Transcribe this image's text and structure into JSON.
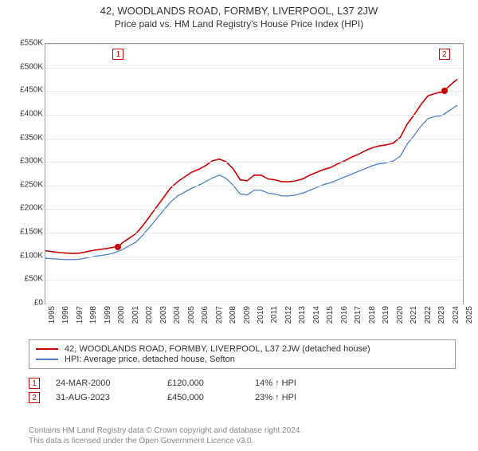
{
  "title": "42, WOODLANDS ROAD, FORMBY, LIVERPOOL, L37 2JW",
  "subtitle": "Price paid vs. HM Land Registry's House Price Index (HPI)",
  "chart": {
    "type": "line",
    "background_color": "#ffffff",
    "grid_color": "#e6e6e6",
    "axis_color": "#999999",
    "tick_font_size": 10,
    "x": {
      "min": 1995,
      "max": 2025,
      "ticks": [
        1995,
        1996,
        1997,
        1998,
        1999,
        2000,
        2001,
        2002,
        2003,
        2004,
        2005,
        2006,
        2007,
        2008,
        2009,
        2010,
        2011,
        2012,
        2013,
        2014,
        2015,
        2016,
        2017,
        2018,
        2019,
        2020,
        2021,
        2022,
        2023,
        2024,
        2025
      ]
    },
    "y": {
      "min": 0,
      "max": 550000,
      "ticks": [
        0,
        50000,
        100000,
        150000,
        200000,
        250000,
        300000,
        350000,
        400000,
        450000,
        500000,
        550000
      ],
      "prefix": "£",
      "suffix": "K",
      "divisor": 1000
    },
    "series": [
      {
        "id": "subject",
        "label": "42, WOODLANDS ROAD, FORMBY, LIVERPOOL, L37 2JW (detached house)",
        "color": "#cc0000",
        "line_width": 1.6,
        "points": [
          [
            1995.0,
            112000
          ],
          [
            1995.5,
            110000
          ],
          [
            1996.0,
            108000
          ],
          [
            1996.5,
            107000
          ],
          [
            1997.0,
            106000
          ],
          [
            1997.5,
            107000
          ],
          [
            1998.0,
            110000
          ],
          [
            1998.5,
            113000
          ],
          [
            1999.0,
            115000
          ],
          [
            1999.5,
            117000
          ],
          [
            2000.0,
            120000
          ],
          [
            2000.25,
            120000
          ],
          [
            2000.5,
            128000
          ],
          [
            2001.0,
            138000
          ],
          [
            2001.5,
            148000
          ],
          [
            2002.0,
            165000
          ],
          [
            2002.5,
            185000
          ],
          [
            2003.0,
            205000
          ],
          [
            2003.5,
            225000
          ],
          [
            2004.0,
            245000
          ],
          [
            2004.5,
            258000
          ],
          [
            2005.0,
            268000
          ],
          [
            2005.5,
            278000
          ],
          [
            2006.0,
            284000
          ],
          [
            2006.5,
            292000
          ],
          [
            2007.0,
            302000
          ],
          [
            2007.5,
            306000
          ],
          [
            2008.0,
            300000
          ],
          [
            2008.5,
            285000
          ],
          [
            2009.0,
            262000
          ],
          [
            2009.5,
            260000
          ],
          [
            2010.0,
            272000
          ],
          [
            2010.5,
            272000
          ],
          [
            2011.0,
            264000
          ],
          [
            2011.5,
            262000
          ],
          [
            2012.0,
            258000
          ],
          [
            2012.5,
            258000
          ],
          [
            2013.0,
            260000
          ],
          [
            2013.5,
            264000
          ],
          [
            2014.0,
            272000
          ],
          [
            2014.5,
            278000
          ],
          [
            2015.0,
            284000
          ],
          [
            2015.5,
            288000
          ],
          [
            2016.0,
            296000
          ],
          [
            2016.5,
            302000
          ],
          [
            2017.0,
            310000
          ],
          [
            2017.5,
            316000
          ],
          [
            2018.0,
            324000
          ],
          [
            2018.5,
            330000
          ],
          [
            2019.0,
            334000
          ],
          [
            2019.5,
            336000
          ],
          [
            2020.0,
            340000
          ],
          [
            2020.5,
            352000
          ],
          [
            2021.0,
            380000
          ],
          [
            2021.5,
            400000
          ],
          [
            2022.0,
            422000
          ],
          [
            2022.5,
            440000
          ],
          [
            2023.0,
            445000
          ],
          [
            2023.5,
            448000
          ],
          [
            2023.67,
            450000
          ],
          [
            2024.0,
            460000
          ],
          [
            2024.3,
            468000
          ],
          [
            2024.6,
            475000
          ]
        ]
      },
      {
        "id": "hpi",
        "label": "HPI: Average price, detached house, Sefton",
        "color": "#4a7ecb",
        "line_width": 1.3,
        "points": [
          [
            1995.0,
            96000
          ],
          [
            1995.5,
            95000
          ],
          [
            1996.0,
            94000
          ],
          [
            1996.5,
            93000
          ],
          [
            1997.0,
            93000
          ],
          [
            1997.5,
            94000
          ],
          [
            1998.0,
            97000
          ],
          [
            1998.5,
            100000
          ],
          [
            1999.0,
            102000
          ],
          [
            1999.5,
            104000
          ],
          [
            2000.0,
            108000
          ],
          [
            2000.5,
            114000
          ],
          [
            2001.0,
            122000
          ],
          [
            2001.5,
            130000
          ],
          [
            2002.0,
            145000
          ],
          [
            2002.5,
            162000
          ],
          [
            2003.0,
            180000
          ],
          [
            2003.5,
            198000
          ],
          [
            2004.0,
            215000
          ],
          [
            2004.5,
            228000
          ],
          [
            2005.0,
            236000
          ],
          [
            2005.5,
            244000
          ],
          [
            2006.0,
            250000
          ],
          [
            2006.5,
            258000
          ],
          [
            2007.0,
            266000
          ],
          [
            2007.5,
            272000
          ],
          [
            2008.0,
            265000
          ],
          [
            2008.5,
            250000
          ],
          [
            2009.0,
            232000
          ],
          [
            2009.5,
            230000
          ],
          [
            2010.0,
            240000
          ],
          [
            2010.5,
            240000
          ],
          [
            2011.0,
            234000
          ],
          [
            2011.5,
            232000
          ],
          [
            2012.0,
            228000
          ],
          [
            2012.5,
            228000
          ],
          [
            2013.0,
            230000
          ],
          [
            2013.5,
            234000
          ],
          [
            2014.0,
            240000
          ],
          [
            2014.5,
            246000
          ],
          [
            2015.0,
            252000
          ],
          [
            2015.5,
            256000
          ],
          [
            2016.0,
            262000
          ],
          [
            2016.5,
            268000
          ],
          [
            2017.0,
            274000
          ],
          [
            2017.5,
            280000
          ],
          [
            2018.0,
            286000
          ],
          [
            2018.5,
            292000
          ],
          [
            2019.0,
            296000
          ],
          [
            2019.5,
            298000
          ],
          [
            2020.0,
            302000
          ],
          [
            2020.5,
            312000
          ],
          [
            2021.0,
            338000
          ],
          [
            2021.5,
            356000
          ],
          [
            2022.0,
            376000
          ],
          [
            2022.5,
            392000
          ],
          [
            2023.0,
            396000
          ],
          [
            2023.5,
            398000
          ],
          [
            2024.0,
            408000
          ],
          [
            2024.3,
            414000
          ],
          [
            2024.6,
            420000
          ]
        ]
      }
    ],
    "callouts": [
      {
        "n": "1",
        "x": 2000.23,
        "y_marker": 120000,
        "label_y_top": true
      },
      {
        "n": "2",
        "x": 2023.67,
        "y_marker": 450000,
        "label_y_top": true
      }
    ]
  },
  "legend": {
    "border_color": "#999999",
    "items": [
      {
        "color": "#cc0000",
        "label": "42, WOODLANDS ROAD, FORMBY, LIVERPOOL, L37 2JW (detached house)"
      },
      {
        "color": "#4a7ecb",
        "label": "HPI: Average price, detached house, Sefton"
      }
    ]
  },
  "transactions": [
    {
      "n": "1",
      "date": "24-MAR-2000",
      "price": "£120,000",
      "diff": "14% ↑ HPI"
    },
    {
      "n": "2",
      "date": "31-AUG-2023",
      "price": "£450,000",
      "diff": "23% ↑ HPI"
    }
  ],
  "footer_line1": "Contains HM Land Registry data © Crown copyright and database right 2024.",
  "footer_line2": "This data is licensed under the Open Government Licence v3.0."
}
